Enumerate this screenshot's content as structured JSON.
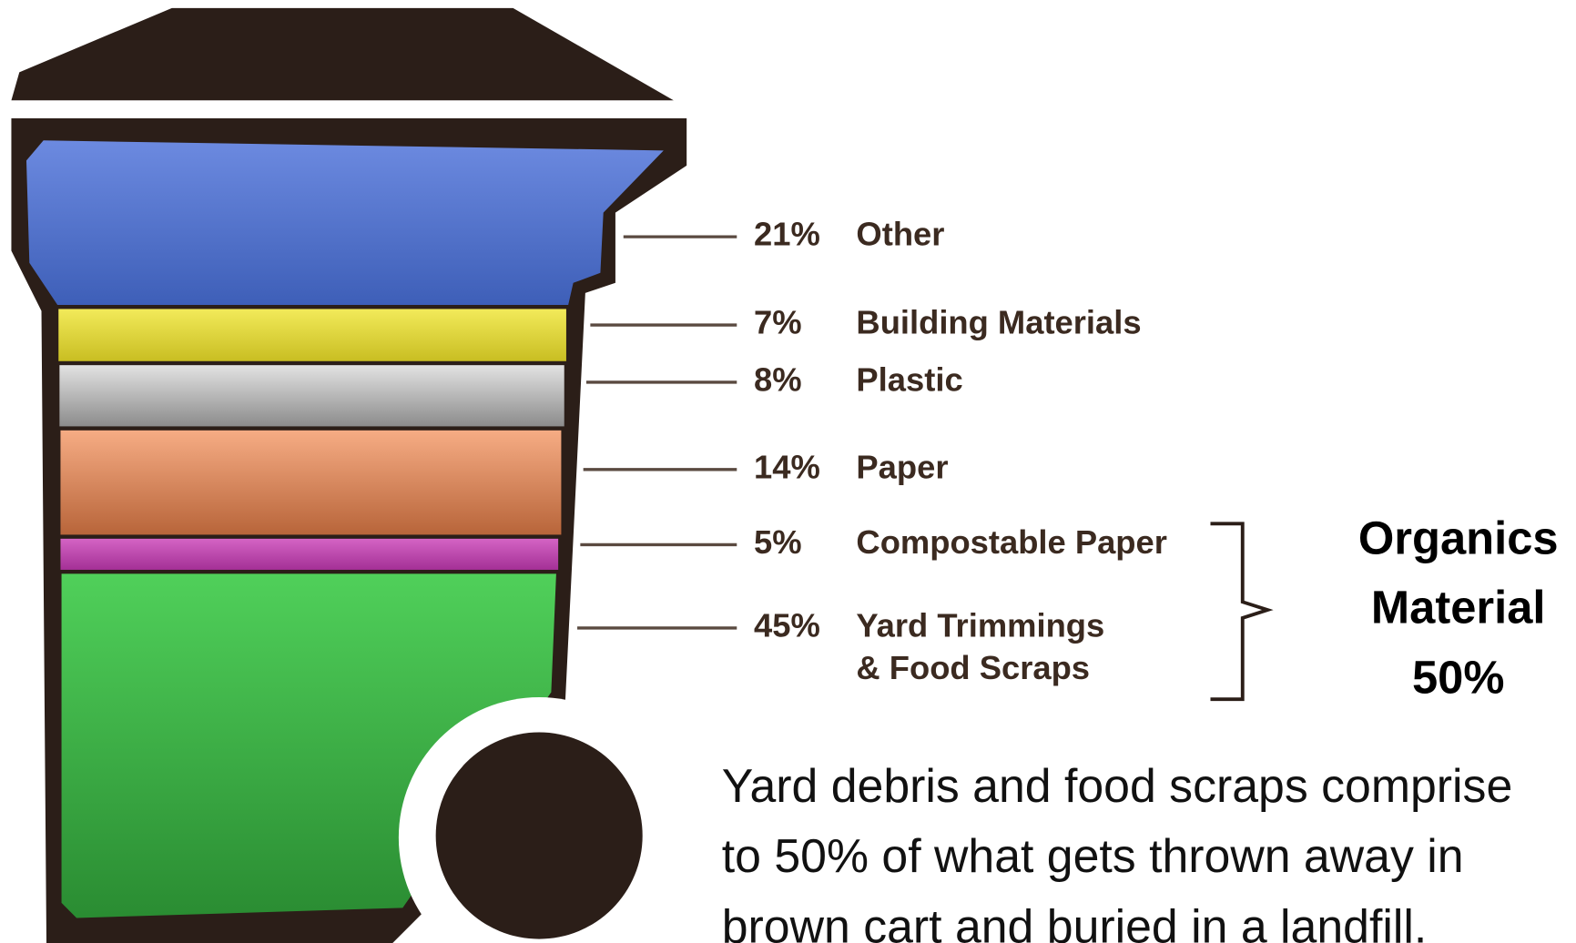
{
  "legend": [
    {
      "percent": "21%",
      "label": "Other"
    },
    {
      "percent": "7%",
      "label": "Building Materials"
    },
    {
      "percent": "8%",
      "label": "Plastic"
    },
    {
      "percent": "14%",
      "label": "Paper"
    },
    {
      "percent": "5%",
      "label": "Compostable Paper"
    },
    {
      "percent": "45%",
      "label": [
        "Yard Trimmings",
        "& Food Scraps"
      ]
    }
  ],
  "group": [
    "Organics",
    "Material",
    "50%"
  ],
  "note": [
    "Yard debris and food scraps comprise",
    "to 50% of what gets thrown away in",
    "brown cart and buried in a landfill."
  ]
}
